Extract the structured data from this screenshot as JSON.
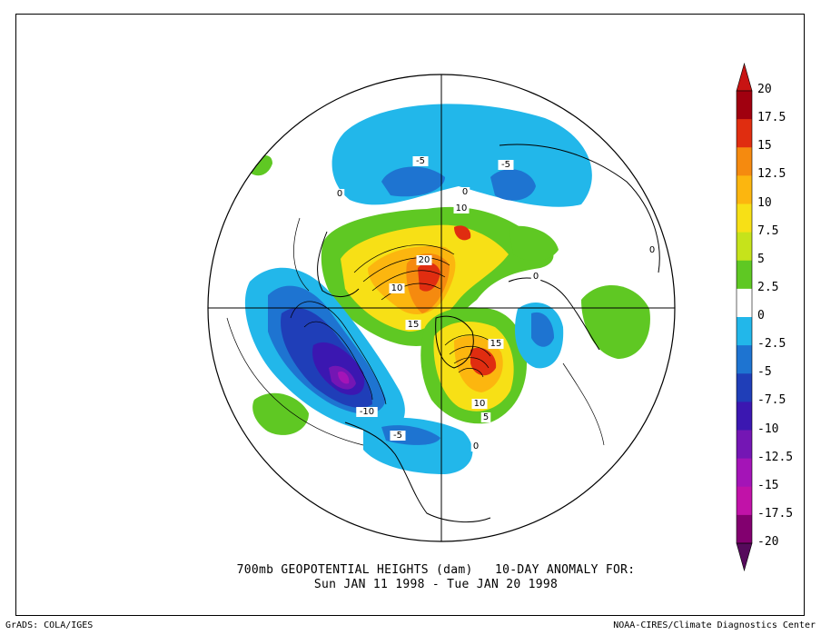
{
  "title": {
    "line1": "700mb GEOPOTENTIAL HEIGHTS (dam)   10-DAY ANOMALY FOR:",
    "line2": "Sun JAN 11 1998 - Tue JAN 20 1998"
  },
  "credits": {
    "left": "GrADS: COLA/IGES",
    "right": "NOAA-CIRES/Climate Diagnostics Center"
  },
  "colorbar": {
    "levels": [
      "20",
      "17.5",
      "15",
      "12.5",
      "10",
      "7.5",
      "5",
      "2.5",
      "0",
      "-2.5",
      "-5",
      "-7.5",
      "-10",
      "-12.5",
      "-15",
      "-17.5",
      "-20"
    ],
    "colors": [
      "#a0000f",
      "#e02d10",
      "#f58a0f",
      "#fcb60f",
      "#f7e016",
      "#c6e31b",
      "#5fc823",
      "#ffffff",
      "#22b7ea",
      "#1e74d1",
      "#1f3eb8",
      "#3b17b1",
      "#7416b4",
      "#a414b7",
      "#c112a8",
      "#82006f"
    ],
    "top_arrow_color": "#c81413",
    "bottom_arrow_color": "#560a5c"
  },
  "map": {
    "projection": "north polar stereographic",
    "contour_labels": [
      {
        "text": "-5"
      },
      {
        "text": "-5"
      },
      {
        "text": "0"
      },
      {
        "text": "10"
      },
      {
        "text": "20"
      },
      {
        "text": "10"
      },
      {
        "text": "15"
      },
      {
        "text": "15"
      },
      {
        "text": "10"
      },
      {
        "text": "5"
      },
      {
        "text": "0"
      },
      {
        "text": "-10"
      },
      {
        "text": "-5"
      },
      {
        "text": "0"
      },
      {
        "text": "0"
      },
      {
        "text": "0"
      }
    ]
  }
}
